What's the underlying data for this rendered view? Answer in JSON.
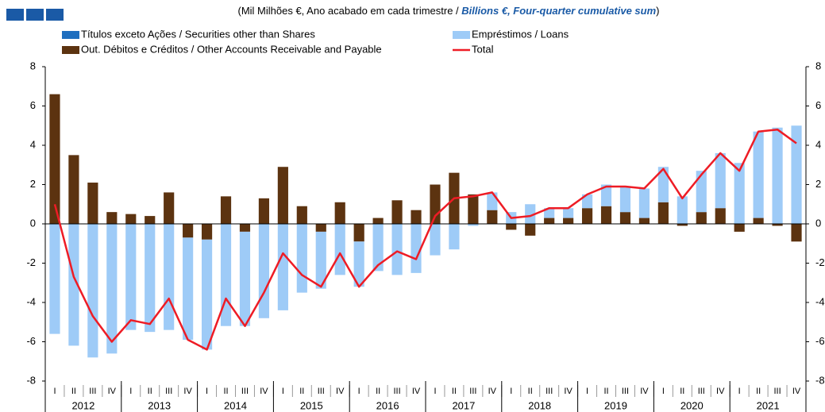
{
  "chart_data": {
    "type": "bar",
    "subtitle": [
      "(Mil Milhões €, Ano acabado em cada trimestre / ",
      "Billions €, Four-quarter cumulative sum",
      ")"
    ],
    "categories": [
      "I",
      "II",
      "III",
      "IV",
      "I",
      "II",
      "III",
      "IV",
      "I",
      "II",
      "III",
      "IV",
      "I",
      "II",
      "III",
      "IV",
      "I",
      "II",
      "III",
      "IV",
      "I",
      "II",
      "III",
      "IV",
      "I",
      "II",
      "III",
      "IV",
      "I",
      "II",
      "III",
      "IV",
      "I",
      "II",
      "III",
      "IV",
      "I",
      "II",
      "III",
      "IV"
    ],
    "years": [
      "2012",
      "2013",
      "2014",
      "2015",
      "2016",
      "2017",
      "2018",
      "2019",
      "2020",
      "2021"
    ],
    "series": [
      {
        "name": "Títulos exceto Ações / Securities other than Shares",
        "type": "bar",
        "color": "#1f6fbf",
        "values": [
          0,
          0,
          0,
          0,
          0,
          0,
          0,
          0,
          0,
          0,
          0,
          0,
          0,
          0,
          0,
          0,
          0,
          0,
          0,
          0,
          0,
          0,
          0,
          0,
          0,
          0,
          0,
          0,
          0,
          0,
          0,
          0,
          0,
          0,
          0,
          0,
          0,
          0,
          0,
          0
        ]
      },
      {
        "name": "Empréstimos / Loans",
        "type": "bar",
        "color": "#9ecbf7",
        "values": [
          -5.6,
          -6.2,
          -6.8,
          -6.6,
          -5.4,
          -5.5,
          -5.4,
          -5.2,
          -5.6,
          -5.2,
          -4.8,
          -4.8,
          -4.4,
          -3.5,
          -2.9,
          -2.6,
          -2.3,
          -2.4,
          -2.6,
          -2.5,
          -1.6,
          -1.3,
          -0.1,
          0.9,
          0.6,
          1.0,
          0.5,
          0.5,
          0.7,
          1.1,
          1.3,
          1.5,
          1.8,
          1.4,
          2.1,
          2.8,
          3.1,
          4.4,
          4.9,
          5.0
        ]
      },
      {
        "name": "Out. Débitos e Créditos / Other Accounts Receivable and Payable",
        "type": "bar",
        "color": "#5c3310",
        "values": [
          6.6,
          3.5,
          2.1,
          0.6,
          0.5,
          0.4,
          1.6,
          -0.7,
          -0.8,
          1.4,
          -0.4,
          1.3,
          2.9,
          0.9,
          -0.4,
          1.1,
          -0.9,
          0.3,
          1.2,
          0.7,
          2.0,
          2.6,
          1.5,
          0.7,
          -0.3,
          -0.6,
          0.3,
          0.3,
          0.8,
          0.9,
          0.6,
          0.3,
          1.1,
          -0.1,
          0.6,
          0.8,
          -0.4,
          0.3,
          -0.1,
          -0.9
        ]
      },
      {
        "name": "Total",
        "type": "line",
        "color": "#ee1c25",
        "values": [
          1.0,
          -2.7,
          -4.7,
          -6.0,
          -4.9,
          -5.1,
          -3.8,
          -5.9,
          -6.4,
          -3.8,
          -5.2,
          -3.5,
          -1.5,
          -2.6,
          -3.2,
          -1.5,
          -3.2,
          -2.1,
          -1.4,
          -1.8,
          0.4,
          1.3,
          1.4,
          1.6,
          0.3,
          0.4,
          0.8,
          0.8,
          1.5,
          1.9,
          1.9,
          1.8,
          2.8,
          1.3,
          2.5,
          3.6,
          2.7,
          4.7,
          4.8,
          4.1
        ]
      }
    ],
    "ylim": [
      -8,
      8
    ],
    "yticks": [
      -8,
      -6,
      -4,
      -2,
      0,
      2,
      4,
      6,
      8
    ],
    "y2lim": [
      -8,
      8
    ],
    "y2ticks": [
      -8,
      -6,
      -4,
      -2,
      0,
      2,
      4,
      6,
      8
    ],
    "legend": "top",
    "grid": false
  }
}
